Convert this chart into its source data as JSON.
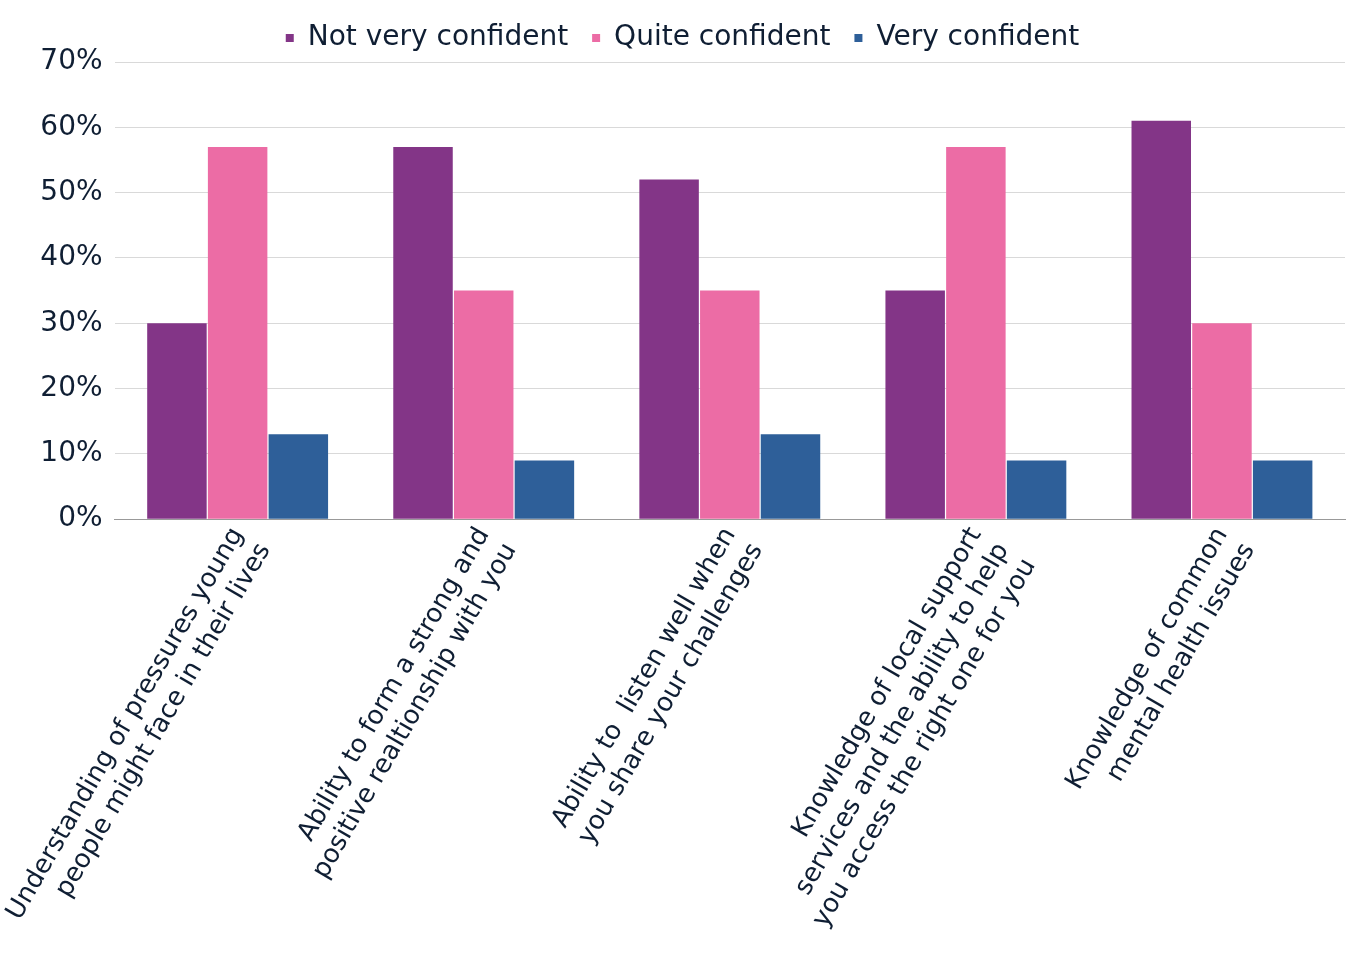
{
  "chart_data": {
    "type": "bar",
    "categories": [
      "Understanding of pressures young\npeople might face in their lives",
      "Ability to form a strong and\npositive realtionship with you",
      "Ability to  listen well when\nyou share your challenges",
      "Knowledge of local support\nservices and the ability to help\nyou access the right one for you",
      "Knowledge of common\nmental health issues"
    ],
    "series": [
      {
        "name": "Not very confident",
        "color": "#833587",
        "values": [
          30,
          57,
          52,
          35,
          61
        ]
      },
      {
        "name": "Quite confident",
        "color": "#ec6ca5",
        "values": [
          57,
          35,
          35,
          57,
          30
        ]
      },
      {
        "name": "Very confident",
        "color": "#2e5f99",
        "values": [
          13,
          9,
          13,
          9,
          9
        ]
      }
    ],
    "ylim": [
      0,
      70
    ],
    "yticks": [
      {
        "value": 0,
        "label": "0%"
      },
      {
        "value": 10,
        "label": "10%"
      },
      {
        "value": 20,
        "label": "20%"
      },
      {
        "value": 30,
        "label": "30%"
      },
      {
        "value": 40,
        "label": "40%"
      },
      {
        "value": 50,
        "label": "50%"
      },
      {
        "value": 60,
        "label": "60%"
      },
      {
        "value": 70,
        "label": "70%"
      }
    ],
    "grid": "y",
    "legend": "top"
  }
}
